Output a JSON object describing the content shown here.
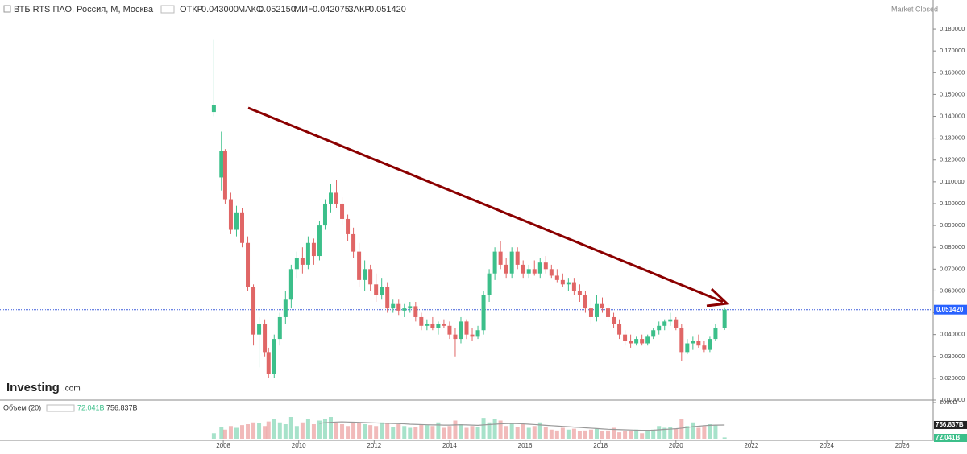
{
  "header": {
    "symbol": "ВТБ RTS ПАО, Россия, M, Москва",
    "open_label": "ОТКР",
    "open": "0.043000",
    "high_label": "МАКС",
    "high": "0.052150",
    "low_label": "МИН",
    "low": "0.042075",
    "close_label": "ЗАКР",
    "close": "0.051420",
    "status": "Market Closed"
  },
  "logo": {
    "name": "Investing",
    "suffix": ".com"
  },
  "chart_data": [
    {
      "type": "candlestick",
      "name": "ВТБ RTS ПАО",
      "xlim": [
        2002.08,
        2026.82
      ],
      "xticks": [
        2008,
        2010,
        2012,
        2014,
        2016,
        2018,
        2020,
        2022,
        2024,
        2026
      ],
      "ylim": [
        0.01,
        0.1933
      ],
      "yticks": [
        {
          "value": 0.01,
          "label": "0.010000"
        },
        {
          "value": 0.02,
          "label": "0.020000"
        },
        {
          "value": 0.03,
          "label": "0.030000"
        },
        {
          "value": 0.04,
          "label": "0.040000"
        },
        {
          "value": 0.05,
          "label": "0.050000"
        },
        {
          "value": 0.06,
          "label": "0.060000"
        },
        {
          "value": 0.07,
          "label": "0.070000"
        },
        {
          "value": 0.08,
          "label": "0.080000"
        },
        {
          "value": 0.09,
          "label": "0.090000"
        },
        {
          "value": 0.1,
          "label": "0.100000"
        },
        {
          "value": 0.11,
          "label": "0.110000"
        },
        {
          "value": 0.12,
          "label": "0.120000"
        },
        {
          "value": 0.13,
          "label": "0.130000"
        },
        {
          "value": 0.14,
          "label": "0.140000"
        },
        {
          "value": 0.15,
          "label": "0.150000"
        },
        {
          "value": 0.16,
          "label": "0.160000"
        },
        {
          "value": 0.17,
          "label": "0.170000"
        },
        {
          "value": 0.18,
          "label": "0.180000"
        }
      ],
      "last_price": {
        "value": 0.05142,
        "label": "0.051420"
      },
      "up_color": "#3cbf8a",
      "down_color": "#e06666",
      "grid": false,
      "x": [
        2007.75,
        2007.95,
        2008.05,
        2008.2,
        2008.35,
        2008.5,
        2008.65,
        2008.8,
        2008.95,
        2009.1,
        2009.2,
        2009.35,
        2009.5,
        2009.65,
        2009.8,
        2009.95,
        2010.1,
        2010.25,
        2010.4,
        2010.55,
        2010.7,
        2010.85,
        2011.0,
        2011.15,
        2011.3,
        2011.45,
        2011.6,
        2011.75,
        2011.9,
        2012.05,
        2012.2,
        2012.35,
        2012.5,
        2012.65,
        2012.8,
        2012.95,
        2013.1,
        2013.25,
        2013.4,
        2013.55,
        2013.7,
        2013.85,
        2014.0,
        2014.15,
        2014.3,
        2014.45,
        2014.6,
        2014.75,
        2014.9,
        2015.05,
        2015.2,
        2015.35,
        2015.5,
        2015.65,
        2015.8,
        2015.95,
        2016.1,
        2016.25,
        2016.4,
        2016.55,
        2016.7,
        2016.85,
        2017.0,
        2017.15,
        2017.3,
        2017.45,
        2017.6,
        2017.75,
        2017.9,
        2018.05,
        2018.2,
        2018.35,
        2018.5,
        2018.65,
        2018.8,
        2018.95,
        2019.1,
        2019.25,
        2019.4,
        2019.55,
        2019.7,
        2019.85,
        2020.0,
        2020.15,
        2020.3,
        2020.45,
        2020.6,
        2020.75,
        2020.9,
        2021.05,
        2021.29
      ],
      "open": [
        0.142,
        0.112,
        0.124,
        0.102,
        0.088,
        0.096,
        0.082,
        0.062,
        0.04,
        0.045,
        0.032,
        0.022,
        0.038,
        0.048,
        0.056,
        0.07,
        0.075,
        0.072,
        0.082,
        0.076,
        0.09,
        0.1,
        0.105,
        0.1,
        0.093,
        0.086,
        0.078,
        0.065,
        0.07,
        0.063,
        0.058,
        0.062,
        0.052,
        0.054,
        0.051,
        0.052,
        0.053,
        0.048,
        0.044,
        0.045,
        0.043,
        0.045,
        0.044,
        0.04,
        0.038,
        0.046,
        0.04,
        0.039,
        0.042,
        0.058,
        0.068,
        0.078,
        0.072,
        0.068,
        0.078,
        0.072,
        0.068,
        0.07,
        0.068,
        0.073,
        0.07,
        0.067,
        0.065,
        0.063,
        0.064,
        0.06,
        0.058,
        0.052,
        0.048,
        0.054,
        0.052,
        0.048,
        0.045,
        0.04,
        0.037,
        0.036,
        0.038,
        0.036,
        0.039,
        0.042,
        0.044,
        0.046,
        0.047,
        0.043,
        0.032,
        0.036,
        0.037,
        0.035,
        0.033,
        0.038,
        0.043
      ],
      "high": [
        0.175,
        0.133,
        0.125,
        0.105,
        0.099,
        0.098,
        0.085,
        0.063,
        0.048,
        0.047,
        0.034,
        0.04,
        0.05,
        0.06,
        0.072,
        0.078,
        0.08,
        0.085,
        0.084,
        0.092,
        0.102,
        0.109,
        0.111,
        0.103,
        0.095,
        0.089,
        0.082,
        0.074,
        0.072,
        0.068,
        0.066,
        0.064,
        0.056,
        0.056,
        0.054,
        0.055,
        0.055,
        0.05,
        0.047,
        0.048,
        0.046,
        0.047,
        0.046,
        0.043,
        0.048,
        0.047,
        0.043,
        0.044,
        0.06,
        0.07,
        0.08,
        0.083,
        0.075,
        0.08,
        0.08,
        0.074,
        0.072,
        0.074,
        0.075,
        0.076,
        0.072,
        0.07,
        0.068,
        0.066,
        0.066,
        0.063,
        0.06,
        0.056,
        0.058,
        0.057,
        0.054,
        0.05,
        0.047,
        0.042,
        0.04,
        0.039,
        0.04,
        0.04,
        0.043,
        0.046,
        0.047,
        0.05,
        0.048,
        0.045,
        0.038,
        0.039,
        0.04,
        0.037,
        0.039,
        0.045,
        0.05215
      ],
      "low": [
        0.14,
        0.106,
        0.1,
        0.086,
        0.085,
        0.08,
        0.06,
        0.035,
        0.025,
        0.03,
        0.02,
        0.02,
        0.035,
        0.045,
        0.052,
        0.066,
        0.068,
        0.07,
        0.072,
        0.074,
        0.088,
        0.096,
        0.098,
        0.09,
        0.083,
        0.075,
        0.062,
        0.06,
        0.06,
        0.055,
        0.056,
        0.05,
        0.05,
        0.049,
        0.048,
        0.05,
        0.046,
        0.042,
        0.042,
        0.042,
        0.04,
        0.043,
        0.038,
        0.03,
        0.036,
        0.038,
        0.037,
        0.038,
        0.04,
        0.055,
        0.065,
        0.07,
        0.066,
        0.066,
        0.07,
        0.066,
        0.066,
        0.067,
        0.066,
        0.068,
        0.066,
        0.064,
        0.062,
        0.06,
        0.058,
        0.055,
        0.05,
        0.045,
        0.046,
        0.05,
        0.046,
        0.043,
        0.038,
        0.035,
        0.034,
        0.035,
        0.035,
        0.035,
        0.038,
        0.04,
        0.042,
        0.044,
        0.042,
        0.028,
        0.031,
        0.033,
        0.034,
        0.032,
        0.032,
        0.037,
        0.042075
      ],
      "close": [
        0.145,
        0.124,
        0.102,
        0.088,
        0.096,
        0.082,
        0.062,
        0.04,
        0.045,
        0.032,
        0.022,
        0.038,
        0.048,
        0.056,
        0.07,
        0.075,
        0.072,
        0.082,
        0.076,
        0.09,
        0.1,
        0.105,
        0.1,
        0.093,
        0.086,
        0.078,
        0.065,
        0.07,
        0.063,
        0.058,
        0.062,
        0.052,
        0.054,
        0.051,
        0.052,
        0.053,
        0.048,
        0.044,
        0.045,
        0.043,
        0.045,
        0.044,
        0.04,
        0.038,
        0.046,
        0.04,
        0.039,
        0.042,
        0.058,
        0.068,
        0.078,
        0.072,
        0.068,
        0.078,
        0.072,
        0.068,
        0.07,
        0.068,
        0.073,
        0.07,
        0.067,
        0.065,
        0.063,
        0.064,
        0.06,
        0.058,
        0.052,
        0.048,
        0.054,
        0.052,
        0.048,
        0.045,
        0.04,
        0.037,
        0.036,
        0.038,
        0.036,
        0.039,
        0.042,
        0.044,
        0.046,
        0.047,
        0.043,
        0.032,
        0.036,
        0.037,
        0.035,
        0.033,
        0.038,
        0.043,
        0.05142
      ]
    },
    {
      "type": "volume",
      "name": "Объем (20)",
      "legend": {
        "last": "72.041B",
        "ma": "756.837B"
      },
      "ylim": [
        0,
        2000
      ],
      "yticks": [
        {
          "value": 2000,
          "label": "2000B"
        }
      ],
      "value_label": "72.041B",
      "ma_label": "756.837B",
      "ma_value": 756.837,
      "values": [
        300,
        650,
        500,
        700,
        600,
        750,
        800,
        900,
        850,
        700,
        950,
        1100,
        900,
        800,
        1200,
        700,
        900,
        1100,
        800,
        1000,
        1100,
        1200,
        900,
        800,
        700,
        850,
        900,
        800,
        750,
        700,
        900,
        850,
        650,
        800,
        700,
        600,
        650,
        800,
        750,
        700,
        900,
        600,
        700,
        1000,
        800,
        600,
        700,
        650,
        1150,
        900,
        1100,
        1000,
        700,
        850,
        650,
        800,
        600,
        700,
        900,
        650,
        500,
        450,
        600,
        500,
        550,
        400,
        450,
        500,
        550,
        400,
        450,
        600,
        350,
        400,
        450,
        500,
        300,
        450,
        500,
        700,
        600,
        650,
        550,
        1100,
        700,
        900,
        600,
        700,
        800,
        750,
        72.041
      ],
      "ma": [
        null,
        null,
        null,
        null,
        null,
        null,
        null,
        null,
        null,
        null,
        null,
        null,
        null,
        null,
        null,
        null,
        null,
        null,
        null,
        850,
        880,
        900,
        920,
        930,
        920,
        910,
        900,
        890,
        880,
        870,
        860,
        850,
        840,
        830,
        820,
        800,
        790,
        780,
        770,
        760,
        760,
        750,
        750,
        760,
        770,
        760,
        750,
        740,
        760,
        780,
        800,
        820,
        830,
        840,
        830,
        820,
        800,
        780,
        760,
        740,
        720,
        700,
        680,
        660,
        640,
        620,
        600,
        580,
        560,
        540,
        520,
        510,
        500,
        490,
        480,
        470,
        460,
        460,
        470,
        490,
        510,
        530,
        550,
        580,
        620,
        660,
        690,
        720,
        740,
        750,
        756.837
      ]
    }
  ]
}
